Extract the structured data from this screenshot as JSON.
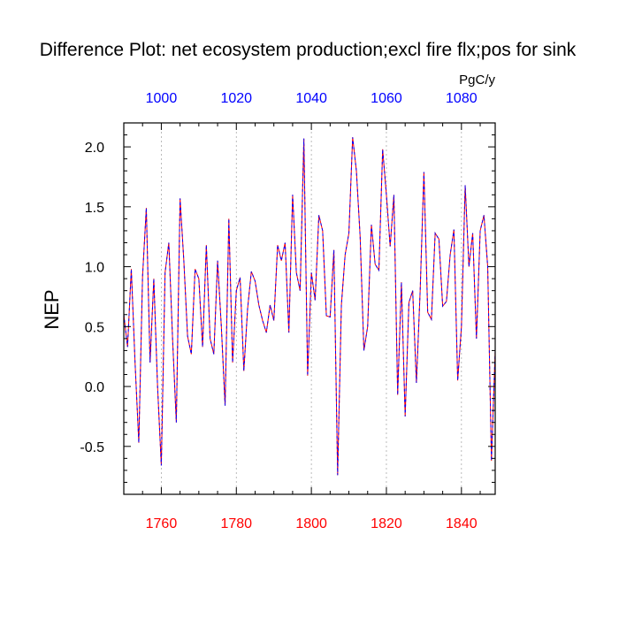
{
  "chart_data": {
    "type": "line",
    "title": "Difference Plot: net ecosystem production;excl fire flx;pos for sink",
    "units": "PgC/y",
    "ylabel": "NEP",
    "xlim": [
      1750,
      1849
    ],
    "ylim": [
      -0.9,
      2.2
    ],
    "x_bottom": {
      "ticks": [
        "1760",
        "1780",
        "1800",
        "1820",
        "1840"
      ],
      "tick_values": [
        1760,
        1780,
        1800,
        1820,
        1840
      ],
      "color": "#ff0000"
    },
    "x_top": {
      "ticks": [
        "1000",
        "1020",
        "1040",
        "1060",
        "1080"
      ],
      "tick_values": [
        1000,
        1020,
        1040,
        1060,
        1080
      ],
      "offset": -760,
      "color": "#0000ff"
    },
    "y_ticks": [
      "2.0",
      "1.5",
      "1.0",
      "0.5",
      "0.0",
      "-0.5"
    ],
    "y_tick_values": [
      2.0,
      1.5,
      1.0,
      0.5,
      0.0,
      -0.5
    ],
    "grid": "vertical-dashed",
    "x_start": 1750,
    "series": [
      {
        "color_a": "#ff0000",
        "color_b": "#0000ff",
        "values": [
          0.6,
          0.33,
          0.98,
          0.2,
          -0.47,
          0.92,
          1.49,
          0.2,
          0.9,
          0.0,
          -0.66,
          0.95,
          1.2,
          0.4,
          -0.3,
          1.57,
          1.05,
          0.42,
          0.27,
          0.98,
          0.9,
          0.33,
          1.18,
          0.4,
          0.27,
          1.05,
          0.5,
          -0.16,
          1.4,
          0.2,
          0.8,
          0.91,
          0.13,
          0.65,
          0.96,
          0.88,
          0.68,
          0.55,
          0.45,
          0.68,
          0.55,
          1.18,
          1.05,
          1.2,
          0.45,
          1.6,
          0.95,
          0.8,
          2.07,
          0.09,
          0.95,
          0.72,
          1.43,
          1.3,
          0.59,
          0.58,
          1.14,
          -0.74,
          0.68,
          1.1,
          1.28,
          2.08,
          1.8,
          1.25,
          0.3,
          0.5,
          1.35,
          1.02,
          0.97,
          1.98,
          1.6,
          1.17,
          1.6,
          -0.07,
          0.87,
          -0.25,
          0.7,
          0.8,
          0.03,
          0.8,
          1.79,
          0.62,
          0.56,
          1.28,
          1.23,
          0.67,
          0.71,
          1.1,
          1.31,
          0.05,
          0.5,
          1.68,
          1.0,
          1.28,
          0.4,
          1.3,
          1.43,
          1.0,
          -0.62,
          0.3
        ]
      }
    ]
  }
}
